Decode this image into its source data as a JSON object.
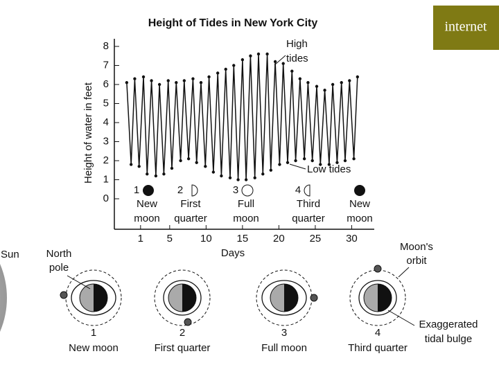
{
  "chart_data": {
    "type": "line",
    "title": "Height of Tides in New York City",
    "x_label": "Days",
    "y_label": "Height of water in feet",
    "x": [
      -0.9,
      -0.3,
      0.2,
      0.8,
      1.4,
      1.9,
      2.5,
      3.1,
      3.6,
      4.2,
      4.8,
      5.3,
      5.9,
      6.5,
      7.0,
      7.6,
      8.2,
      8.7,
      9.3,
      9.9,
      10.4,
      11.0,
      11.6,
      12.1,
      12.7,
      13.3,
      13.8,
      14.4,
      15.0,
      15.5,
      16.1,
      16.7,
      17.2,
      17.8,
      18.4,
      18.9,
      19.5,
      20.1,
      20.6,
      21.2,
      21.8,
      22.3,
      22.9,
      23.5,
      24.0,
      24.6,
      25.2,
      25.7,
      26.3,
      26.9,
      27.4,
      28.0,
      28.6,
      29.1,
      29.7,
      30.3,
      30.8
    ],
    "values": [
      6.1,
      1.8,
      6.3,
      1.7,
      6.4,
      1.3,
      6.2,
      1.2,
      6.0,
      1.3,
      6.2,
      1.6,
      6.1,
      2.0,
      6.2,
      2.1,
      6.3,
      1.9,
      6.1,
      1.7,
      6.4,
      1.4,
      6.6,
      1.2,
      6.8,
      1.1,
      7.0,
      1.0,
      7.3,
      1.0,
      7.5,
      1.1,
      7.6,
      1.3,
      7.6,
      1.5,
      7.2,
      1.8,
      7.1,
      1.9,
      6.7,
      2.0,
      6.3,
      2.1,
      6.1,
      2.0,
      5.9,
      1.8,
      5.7,
      1.8,
      6.0,
      1.9,
      6.1,
      2.0,
      6.2,
      2.1,
      6.4
    ],
    "color": "#111111",
    "xlim": [
      -2.6,
      33.1
    ],
    "xticks": [
      1,
      5,
      10,
      15,
      20,
      25,
      30
    ],
    "ylim": [
      -1.6,
      8.4
    ],
    "yticks": [
      0,
      1,
      2,
      3,
      4,
      5,
      6,
      7,
      8
    ],
    "annotations": {
      "high": [
        "High",
        "tides"
      ],
      "low": "Low tides"
    },
    "phases": [
      {
        "number": "1",
        "lines": [
          "New",
          "moon"
        ]
      },
      {
        "number": "2",
        "lines": [
          "First",
          "quarter"
        ]
      },
      {
        "number": "3",
        "lines": [
          "Full",
          "moon"
        ]
      },
      {
        "number": "4",
        "lines": [
          "Third",
          "quarter"
        ]
      },
      {
        "lines": [
          "New",
          "moon"
        ]
      }
    ]
  },
  "diagram": {
    "sun": "Sun",
    "north_pole": [
      "North",
      "pole"
    ],
    "orbit": [
      "Moon's",
      "orbit"
    ],
    "bulge": [
      "Exaggerated",
      "tidal bulge"
    ],
    "panels": [
      {
        "number": "1",
        "label": "New moon"
      },
      {
        "number": "2",
        "label": "First quarter"
      },
      {
        "number": "3",
        "label": "Full moon"
      },
      {
        "number": "4",
        "label": "Third quarter"
      }
    ]
  },
  "badge": "internet"
}
